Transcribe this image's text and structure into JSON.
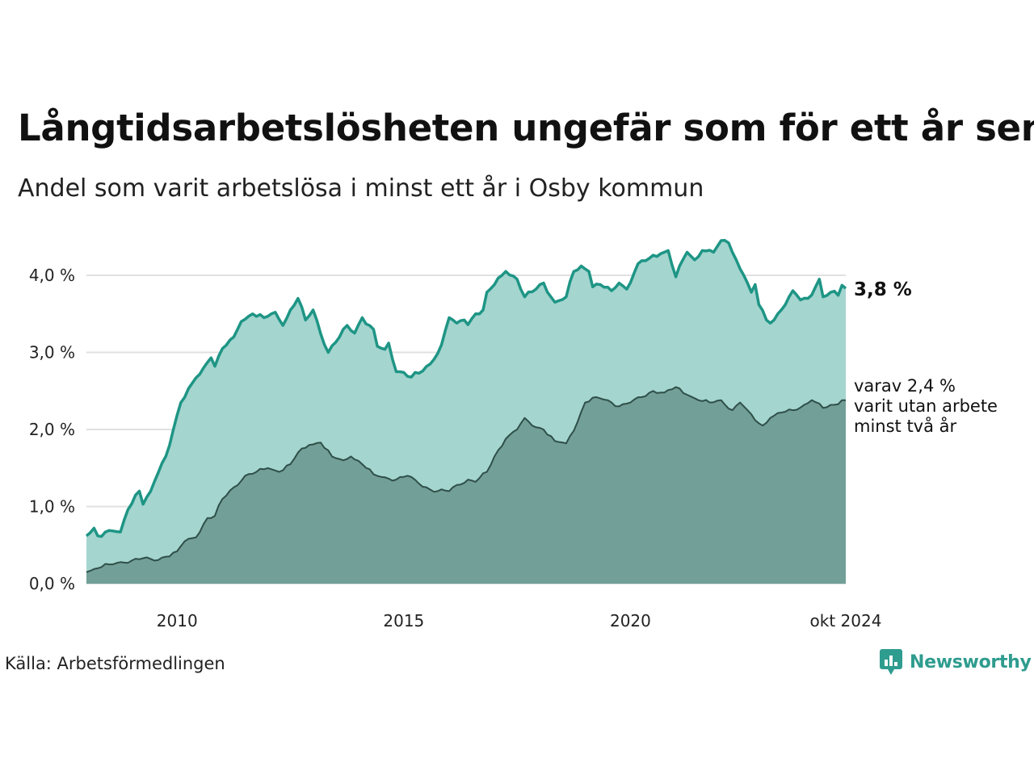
{
  "title": "Långtidsarbetslösheten ungefär som för ett år sen",
  "subtitle": "Andel som varit arbetslösa i minst ett år i Osby kommun",
  "source": "Källa: Arbetsförmedlingen",
  "brand": "Newsworthy",
  "colors": {
    "outer_line": "#1e9585",
    "outer_fill": "#a4d5cf",
    "inner_line": "#2f4f49",
    "inner_fill": "#729f97",
    "grid": "#e0e0e0",
    "brand": "#2e9c8e"
  },
  "chart_data": {
    "type": "area",
    "title": "Långtidsarbetslösheten ungefär som för ett år sen",
    "subtitle": "Andel som varit arbetslösa i minst ett år i Osby kommun",
    "x_start": "2008-01",
    "x_end": "2024-10",
    "frequency": "monthly",
    "x_ticks": [
      {
        "date": "2010-01",
        "label": "2010"
      },
      {
        "date": "2015-01",
        "label": "2015"
      },
      {
        "date": "2020-01",
        "label": "2020"
      },
      {
        "date": "2024-10",
        "label": "okt 2024"
      }
    ],
    "y_ticks": [
      {
        "value": 0,
        "label": "0,0 %"
      },
      {
        "value": 1,
        "label": "1,0 %"
      },
      {
        "value": 2,
        "label": "2,0 %"
      },
      {
        "value": 3,
        "label": "3,0 %"
      },
      {
        "value": 4,
        "label": "4,0 %"
      }
    ],
    "ylim": [
      0,
      4.6
    ],
    "grid": true,
    "unit": "%",
    "series": [
      {
        "key": "at_least_one_year",
        "end_label": "3,8 %",
        "keypoints": [
          [
            "2008-01",
            0.62
          ],
          [
            "2008-03",
            0.72
          ],
          [
            "2008-04",
            0.62
          ],
          [
            "2008-07",
            0.69
          ],
          [
            "2008-10",
            0.67
          ],
          [
            "2008-12",
            0.96
          ],
          [
            "2009-02",
            1.15
          ],
          [
            "2009-03",
            1.2
          ],
          [
            "2009-04",
            1.03
          ],
          [
            "2009-06",
            1.2
          ],
          [
            "2009-08",
            1.44
          ],
          [
            "2009-10",
            1.65
          ],
          [
            "2009-12",
            2.0
          ],
          [
            "2010-02",
            2.35
          ],
          [
            "2010-05",
            2.6
          ],
          [
            "2010-08",
            2.8
          ],
          [
            "2010-10",
            2.93
          ],
          [
            "2010-11",
            2.82
          ],
          [
            "2011-01",
            3.05
          ],
          [
            "2011-04",
            3.2
          ],
          [
            "2011-06",
            3.4
          ],
          [
            "2011-09",
            3.5
          ],
          [
            "2011-12",
            3.45
          ],
          [
            "2012-03",
            3.52
          ],
          [
            "2012-05",
            3.35
          ],
          [
            "2012-07",
            3.55
          ],
          [
            "2012-09",
            3.7
          ],
          [
            "2012-11",
            3.42
          ],
          [
            "2013-01",
            3.55
          ],
          [
            "2013-04",
            3.1
          ],
          [
            "2013-05",
            3.0
          ],
          [
            "2013-08",
            3.2
          ],
          [
            "2013-10",
            3.35
          ],
          [
            "2013-12",
            3.25
          ],
          [
            "2014-02",
            3.45
          ],
          [
            "2014-05",
            3.3
          ],
          [
            "2014-06",
            3.08
          ],
          [
            "2014-08",
            3.04
          ],
          [
            "2014-09",
            3.12
          ],
          [
            "2014-11",
            2.75
          ],
          [
            "2015-01",
            2.74
          ],
          [
            "2015-03",
            2.68
          ],
          [
            "2015-05",
            2.73
          ],
          [
            "2015-08",
            2.85
          ],
          [
            "2015-11",
            3.1
          ],
          [
            "2016-01",
            3.45
          ],
          [
            "2016-03",
            3.38
          ],
          [
            "2016-05",
            3.42
          ],
          [
            "2016-06",
            3.36
          ],
          [
            "2016-08",
            3.5
          ],
          [
            "2016-10",
            3.55
          ],
          [
            "2016-11",
            3.78
          ],
          [
            "2017-01",
            3.88
          ],
          [
            "2017-04",
            4.05
          ],
          [
            "2017-07",
            3.95
          ],
          [
            "2017-09",
            3.72
          ],
          [
            "2017-12",
            3.82
          ],
          [
            "2018-02",
            3.9
          ],
          [
            "2018-05",
            3.65
          ],
          [
            "2018-08",
            3.72
          ],
          [
            "2018-10",
            4.05
          ],
          [
            "2018-12",
            4.12
          ],
          [
            "2019-02",
            4.05
          ],
          [
            "2019-03",
            3.85
          ],
          [
            "2019-05",
            3.88
          ],
          [
            "2019-08",
            3.8
          ],
          [
            "2019-10",
            3.9
          ],
          [
            "2019-12",
            3.82
          ],
          [
            "2020-03",
            4.15
          ],
          [
            "2020-06",
            4.22
          ],
          [
            "2020-09",
            4.28
          ],
          [
            "2020-11",
            4.32
          ],
          [
            "2021-01",
            3.98
          ],
          [
            "2021-04",
            4.3
          ],
          [
            "2021-06",
            4.2
          ],
          [
            "2021-08",
            4.32
          ],
          [
            "2021-11",
            4.3
          ],
          [
            "2022-01",
            4.45
          ],
          [
            "2022-03",
            4.42
          ],
          [
            "2022-05",
            4.2
          ],
          [
            "2022-07",
            4.0
          ],
          [
            "2022-09",
            3.78
          ],
          [
            "2022-10",
            3.88
          ],
          [
            "2022-11",
            3.62
          ],
          [
            "2023-01",
            3.42
          ],
          [
            "2023-02",
            3.38
          ],
          [
            "2023-04",
            3.5
          ],
          [
            "2023-06",
            3.62
          ],
          [
            "2023-08",
            3.8
          ],
          [
            "2023-10",
            3.68
          ],
          [
            "2023-12",
            3.7
          ],
          [
            "2024-02",
            3.85
          ],
          [
            "2024-03",
            3.95
          ],
          [
            "2024-04",
            3.72
          ],
          [
            "2024-06",
            3.78
          ],
          [
            "2024-08",
            3.74
          ],
          [
            "2024-09",
            3.87
          ],
          [
            "2024-10",
            3.83
          ]
        ]
      },
      {
        "key": "at_least_two_years",
        "end_label_lines": [
          "varav 2,4 %",
          "varit utan arbete",
          "minst två år"
        ],
        "keypoints": [
          [
            "2008-01",
            0.15
          ],
          [
            "2008-04",
            0.2
          ],
          [
            "2008-07",
            0.25
          ],
          [
            "2008-10",
            0.28
          ],
          [
            "2009-01",
            0.3
          ],
          [
            "2009-04",
            0.33
          ],
          [
            "2009-07",
            0.3
          ],
          [
            "2009-10",
            0.35
          ],
          [
            "2010-01",
            0.42
          ],
          [
            "2010-03",
            0.55
          ],
          [
            "2010-06",
            0.6
          ],
          [
            "2010-09",
            0.85
          ],
          [
            "2010-11",
            0.88
          ],
          [
            "2011-01",
            1.1
          ],
          [
            "2011-04",
            1.25
          ],
          [
            "2011-07",
            1.4
          ],
          [
            "2011-10",
            1.45
          ],
          [
            "2012-01",
            1.5
          ],
          [
            "2012-04",
            1.45
          ],
          [
            "2012-07",
            1.55
          ],
          [
            "2012-09",
            1.7
          ],
          [
            "2012-12",
            1.8
          ],
          [
            "2013-03",
            1.83
          ],
          [
            "2013-06",
            1.65
          ],
          [
            "2013-09",
            1.6
          ],
          [
            "2013-11",
            1.65
          ],
          [
            "2014-02",
            1.55
          ],
          [
            "2014-05",
            1.42
          ],
          [
            "2014-08",
            1.38
          ],
          [
            "2014-11",
            1.35
          ],
          [
            "2015-02",
            1.4
          ],
          [
            "2015-05",
            1.3
          ],
          [
            "2015-08",
            1.22
          ],
          [
            "2015-10",
            1.2
          ],
          [
            "2016-01",
            1.2
          ],
          [
            "2016-03",
            1.28
          ],
          [
            "2016-06",
            1.35
          ],
          [
            "2016-08",
            1.32
          ],
          [
            "2016-11",
            1.45
          ],
          [
            "2017-01",
            1.65
          ],
          [
            "2017-04",
            1.88
          ],
          [
            "2017-07",
            2.0
          ],
          [
            "2017-09",
            2.15
          ],
          [
            "2017-11",
            2.05
          ],
          [
            "2018-02",
            2.0
          ],
          [
            "2018-05",
            1.85
          ],
          [
            "2018-08",
            1.82
          ],
          [
            "2018-11",
            2.1
          ],
          [
            "2019-01",
            2.35
          ],
          [
            "2019-04",
            2.42
          ],
          [
            "2019-07",
            2.38
          ],
          [
            "2019-10",
            2.3
          ],
          [
            "2020-01",
            2.35
          ],
          [
            "2020-04",
            2.42
          ],
          [
            "2020-07",
            2.5
          ],
          [
            "2020-10",
            2.48
          ],
          [
            "2021-01",
            2.55
          ],
          [
            "2021-04",
            2.45
          ],
          [
            "2021-07",
            2.38
          ],
          [
            "2021-10",
            2.35
          ],
          [
            "2022-01",
            2.38
          ],
          [
            "2022-04",
            2.25
          ],
          [
            "2022-06",
            2.35
          ],
          [
            "2022-08",
            2.25
          ],
          [
            "2022-10",
            2.12
          ],
          [
            "2022-12",
            2.05
          ],
          [
            "2023-02",
            2.15
          ],
          [
            "2023-05",
            2.22
          ],
          [
            "2023-08",
            2.25
          ],
          [
            "2023-11",
            2.32
          ],
          [
            "2024-01",
            2.38
          ],
          [
            "2024-04",
            2.28
          ],
          [
            "2024-07",
            2.32
          ],
          [
            "2024-09",
            2.38
          ],
          [
            "2024-10",
            2.38
          ]
        ]
      }
    ]
  }
}
